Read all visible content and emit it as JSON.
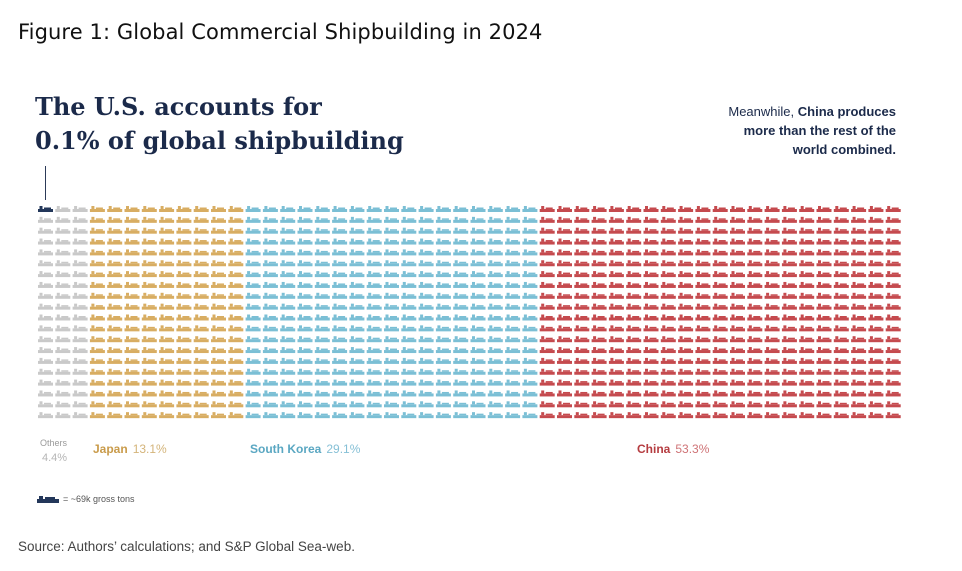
{
  "figure_title": "Figure 1: Global Commercial Shipbuilding in 2024",
  "headline": {
    "line1": "The U.S. accounts for",
    "line2": "0.1% of global shipbuilding"
  },
  "callout": {
    "prefix": "Meanwhile, ",
    "bold_line1": "China produces",
    "bold_line2": "more than the rest of the",
    "bold_line3": "world combined."
  },
  "legend_key": "= ~69k gross tons",
  "source": "Source: Authors’ calculations; and S&P Global Sea-web.",
  "icon": "ship-icon",
  "chart_data": {
    "type": "waffle",
    "title": "The U.S. accounts for 0.1% of global shipbuilding",
    "unit": "~69k gross tons per icon",
    "rows": 20,
    "columns": 50,
    "categories": [
      {
        "name": "United States",
        "label": "",
        "pct_label": "0.1%",
        "value": 0.1,
        "icons": 1,
        "color": "#23375a"
      },
      {
        "name": "Others",
        "label": "Others",
        "pct_label": "4.4%",
        "value": 4.4,
        "icons": 59,
        "color": "#c9c9c9"
      },
      {
        "name": "Japan",
        "label": "Japan",
        "pct_label": "13.1%",
        "value": 13.1,
        "icons": 180,
        "color": "#d8ad62"
      },
      {
        "name": "South Korea",
        "label": "South Korea",
        "pct_label": "29.1%",
        "value": 29.1,
        "icons": 340,
        "color": "#7bbfd5"
      },
      {
        "name": "China",
        "label": "China",
        "pct_label": "53.3%",
        "value": 53.3,
        "icons": 480,
        "color": "#c54a4e"
      }
    ],
    "label_colors": {
      "Japan": {
        "name": "#c99b4a",
        "pct": "#d4b47a"
      },
      "South Korea": {
        "name": "#5aa7c2",
        "pct": "#86c0d6"
      },
      "China": {
        "name": "#b53c40",
        "pct": "#cf7376"
      }
    }
  }
}
